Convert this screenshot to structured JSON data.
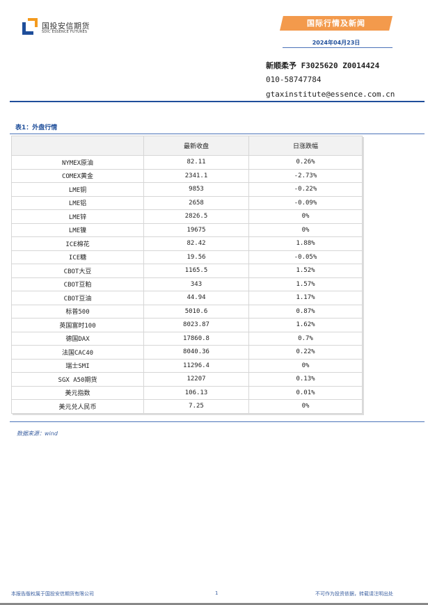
{
  "header": {
    "logo_cn": "国投安信期货",
    "logo_en": "SDIC ESSENCE FUTURES",
    "banner": "国际行情及新闻",
    "date": "2024年04月23日",
    "colors": {
      "banner": "#f39a4c",
      "brand_blue": "#1f4e9a",
      "logo_orange": "#f39a1e"
    }
  },
  "contact": {
    "analyst": "新顺柔予 F3025620 Z0014424",
    "phone": "010-58747784",
    "email": "gtaxinstitute@essence.com.cn"
  },
  "table": {
    "title": "表1：外盘行情",
    "columns": [
      "",
      "最新收盘",
      "日涨跌幅"
    ],
    "rows": [
      [
        "NYMEX原油",
        "82.11",
        "0.26%"
      ],
      [
        "COMEX黄金",
        "2341.1",
        "-2.73%"
      ],
      [
        "LME铜",
        "9853",
        "-0.22%"
      ],
      [
        "LME铝",
        "2658",
        "-0.09%"
      ],
      [
        "LME锌",
        "2826.5",
        "0%"
      ],
      [
        "LME镍",
        "19675",
        "0%"
      ],
      [
        "ICE棉花",
        "82.42",
        "1.88%"
      ],
      [
        "ICE糖",
        "19.56",
        "-0.05%"
      ],
      [
        "CBOT大豆",
        "1165.5",
        "1.52%"
      ],
      [
        "CBOT豆粕",
        "343",
        "1.57%"
      ],
      [
        "CBOT豆油",
        "44.94",
        "1.17%"
      ],
      [
        "标普500",
        "5010.6",
        "0.87%"
      ],
      [
        "英国富时100",
        "8023.87",
        "1.62%"
      ],
      [
        "德国DAX",
        "17860.8",
        "0.7%"
      ],
      [
        "法国CAC40",
        "8040.36",
        "0.22%"
      ],
      [
        "瑞士SMI",
        "11296.4",
        "0%"
      ],
      [
        "SGX A50期货",
        "12207",
        "0.13%"
      ],
      [
        "美元指数",
        "106.13",
        "0.01%"
      ],
      [
        "美元兑人民币",
        "7.25",
        "0%"
      ]
    ],
    "source": "数据来源：wind"
  },
  "footer": {
    "copyright": "本报告版权属于国投安信期货有限公司",
    "page": "1",
    "disclaimer": "不可作为投资依据，转载请注明出处"
  }
}
